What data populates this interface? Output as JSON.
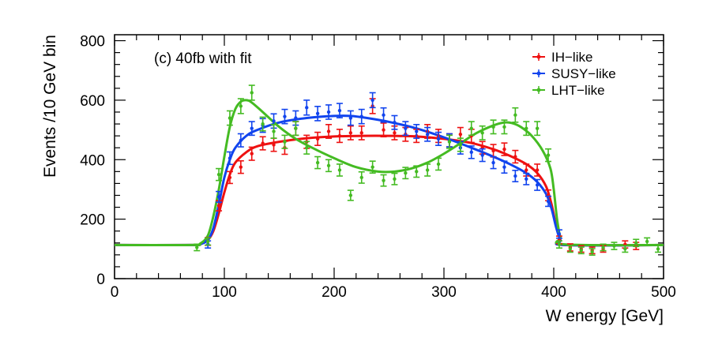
{
  "chart_data": {
    "type": "line",
    "title": "",
    "annotation": "(c) 40fb with fit",
    "xlabel": "W energy [GeV]",
    "ylabel": "Events /10 GeV bin",
    "xlim": [
      0,
      500
    ],
    "ylim": [
      0,
      820
    ],
    "x_ticks": [
      0,
      100,
      200,
      300,
      400,
      500
    ],
    "y_ticks": [
      0,
      200,
      400,
      600,
      800
    ],
    "legend_position": "top-right",
    "series": [
      {
        "name": "IH−like",
        "color": "#ee1111",
        "fit": [
          [
            0,
            113
          ],
          [
            70,
            113
          ],
          [
            78,
            116
          ],
          [
            85,
            130
          ],
          [
            90,
            160
          ],
          [
            95,
            220
          ],
          [
            100,
            290
          ],
          [
            105,
            350
          ],
          [
            110,
            390
          ],
          [
            120,
            425
          ],
          [
            130,
            445
          ],
          [
            150,
            460
          ],
          [
            175,
            472
          ],
          [
            200,
            478
          ],
          [
            225,
            480
          ],
          [
            250,
            480
          ],
          [
            275,
            478
          ],
          [
            300,
            470
          ],
          [
            325,
            456
          ],
          [
            345,
            435
          ],
          [
            360,
            413
          ],
          [
            375,
            385
          ],
          [
            385,
            355
          ],
          [
            393,
            310
          ],
          [
            398,
            250
          ],
          [
            402,
            180
          ],
          [
            406,
            130
          ],
          [
            410,
            113
          ],
          [
            500,
            113
          ]
        ],
        "points": [
          {
            "x": 85,
            "y": 125,
            "err": 13
          },
          {
            "x": 95,
            "y": 245,
            "err": 17
          },
          {
            "x": 105,
            "y": 340,
            "err": 20
          },
          {
            "x": 115,
            "y": 375,
            "err": 21
          },
          {
            "x": 125,
            "y": 420,
            "err": 22
          },
          {
            "x": 135,
            "y": 455,
            "err": 22
          },
          {
            "x": 145,
            "y": 450,
            "err": 22
          },
          {
            "x": 155,
            "y": 440,
            "err": 22
          },
          {
            "x": 165,
            "y": 505,
            "err": 23
          },
          {
            "x": 175,
            "y": 460,
            "err": 22
          },
          {
            "x": 185,
            "y": 470,
            "err": 22
          },
          {
            "x": 195,
            "y": 495,
            "err": 23
          },
          {
            "x": 205,
            "y": 480,
            "err": 22
          },
          {
            "x": 215,
            "y": 490,
            "err": 23
          },
          {
            "x": 225,
            "y": 490,
            "err": 23
          },
          {
            "x": 235,
            "y": 580,
            "err": 25
          },
          {
            "x": 245,
            "y": 500,
            "err": 23
          },
          {
            "x": 255,
            "y": 490,
            "err": 23
          },
          {
            "x": 265,
            "y": 485,
            "err": 23
          },
          {
            "x": 275,
            "y": 480,
            "err": 22
          },
          {
            "x": 285,
            "y": 495,
            "err": 23
          },
          {
            "x": 295,
            "y": 480,
            "err": 22
          },
          {
            "x": 305,
            "y": 465,
            "err": 22
          },
          {
            "x": 315,
            "y": 485,
            "err": 23
          },
          {
            "x": 325,
            "y": 480,
            "err": 22
          },
          {
            "x": 335,
            "y": 440,
            "err": 21
          },
          {
            "x": 345,
            "y": 430,
            "err": 21
          },
          {
            "x": 355,
            "y": 435,
            "err": 21
          },
          {
            "x": 365,
            "y": 410,
            "err": 21
          },
          {
            "x": 375,
            "y": 365,
            "err": 20
          },
          {
            "x": 385,
            "y": 365,
            "err": 20
          },
          {
            "x": 395,
            "y": 280,
            "err": 18
          },
          {
            "x": 405,
            "y": 130,
            "err": 13
          },
          {
            "x": 415,
            "y": 105,
            "err": 12
          },
          {
            "x": 425,
            "y": 100,
            "err": 11
          },
          {
            "x": 435,
            "y": 95,
            "err": 11
          },
          {
            "x": 445,
            "y": 100,
            "err": 11
          },
          {
            "x": 465,
            "y": 115,
            "err": 12
          },
          {
            "x": 475,
            "y": 110,
            "err": 12
          }
        ]
      },
      {
        "name": "SUSY−like",
        "color": "#1144ee",
        "fit": [
          [
            0,
            113
          ],
          [
            70,
            113
          ],
          [
            78,
            116
          ],
          [
            85,
            130
          ],
          [
            90,
            170
          ],
          [
            95,
            250
          ],
          [
            100,
            340
          ],
          [
            105,
            400
          ],
          [
            110,
            440
          ],
          [
            120,
            480
          ],
          [
            130,
            500
          ],
          [
            150,
            525
          ],
          [
            175,
            540
          ],
          [
            200,
            547
          ],
          [
            215,
            547
          ],
          [
            230,
            540
          ],
          [
            250,
            527
          ],
          [
            275,
            505
          ],
          [
            300,
            475
          ],
          [
            325,
            440
          ],
          [
            345,
            410
          ],
          [
            360,
            385
          ],
          [
            375,
            355
          ],
          [
            385,
            325
          ],
          [
            393,
            285
          ],
          [
            398,
            235
          ],
          [
            402,
            175
          ],
          [
            406,
            130
          ],
          [
            410,
            113
          ],
          [
            500,
            113
          ]
        ],
        "points": [
          {
            "x": 85,
            "y": 115,
            "err": 12
          },
          {
            "x": 95,
            "y": 275,
            "err": 18
          },
          {
            "x": 105,
            "y": 405,
            "err": 21
          },
          {
            "x": 115,
            "y": 465,
            "err": 22
          },
          {
            "x": 125,
            "y": 505,
            "err": 23
          },
          {
            "x": 135,
            "y": 515,
            "err": 23
          },
          {
            "x": 145,
            "y": 530,
            "err": 24
          },
          {
            "x": 155,
            "y": 545,
            "err": 24
          },
          {
            "x": 165,
            "y": 540,
            "err": 24
          },
          {
            "x": 175,
            "y": 575,
            "err": 25
          },
          {
            "x": 185,
            "y": 555,
            "err": 24
          },
          {
            "x": 195,
            "y": 560,
            "err": 24
          },
          {
            "x": 205,
            "y": 565,
            "err": 24
          },
          {
            "x": 215,
            "y": 540,
            "err": 24
          },
          {
            "x": 225,
            "y": 545,
            "err": 24
          },
          {
            "x": 235,
            "y": 600,
            "err": 25
          },
          {
            "x": 245,
            "y": 550,
            "err": 24
          },
          {
            "x": 255,
            "y": 525,
            "err": 23
          },
          {
            "x": 265,
            "y": 505,
            "err": 23
          },
          {
            "x": 275,
            "y": 495,
            "err": 23
          },
          {
            "x": 285,
            "y": 485,
            "err": 23
          },
          {
            "x": 295,
            "y": 470,
            "err": 22
          },
          {
            "x": 305,
            "y": 465,
            "err": 22
          },
          {
            "x": 315,
            "y": 440,
            "err": 21
          },
          {
            "x": 325,
            "y": 425,
            "err": 21
          },
          {
            "x": 335,
            "y": 415,
            "err": 21
          },
          {
            "x": 345,
            "y": 390,
            "err": 20
          },
          {
            "x": 355,
            "y": 375,
            "err": 20
          },
          {
            "x": 365,
            "y": 345,
            "err": 19
          },
          {
            "x": 375,
            "y": 335,
            "err": 19
          },
          {
            "x": 385,
            "y": 315,
            "err": 18
          },
          {
            "x": 395,
            "y": 260,
            "err": 17
          },
          {
            "x": 405,
            "y": 150,
            "err": 14
          }
        ]
      },
      {
        "name": "LHT−like",
        "color": "#44bb22",
        "fit": [
          [
            0,
            113
          ],
          [
            70,
            113
          ],
          [
            78,
            118
          ],
          [
            85,
            145
          ],
          [
            90,
            210
          ],
          [
            95,
            300
          ],
          [
            100,
            410
          ],
          [
            105,
            510
          ],
          [
            110,
            570
          ],
          [
            115,
            595
          ],
          [
            120,
            600
          ],
          [
            125,
            592
          ],
          [
            135,
            560
          ],
          [
            150,
            510
          ],
          [
            165,
            470
          ],
          [
            180,
            440
          ],
          [
            200,
            405
          ],
          [
            220,
            375
          ],
          [
            240,
            360
          ],
          [
            255,
            360
          ],
          [
            270,
            370
          ],
          [
            285,
            390
          ],
          [
            300,
            420
          ],
          [
            315,
            455
          ],
          [
            330,
            490
          ],
          [
            345,
            515
          ],
          [
            355,
            525
          ],
          [
            362,
            523
          ],
          [
            370,
            510
          ],
          [
            380,
            480
          ],
          [
            390,
            430
          ],
          [
            397,
            370
          ],
          [
            400,
            300
          ],
          [
            403,
            200
          ],
          [
            406,
            140
          ],
          [
            410,
            115
          ],
          [
            500,
            113
          ]
        ],
        "points": [
          {
            "x": 75,
            "y": 105,
            "err": 11
          },
          {
            "x": 85,
            "y": 125,
            "err": 12
          },
          {
            "x": 95,
            "y": 350,
            "err": 20
          },
          {
            "x": 105,
            "y": 540,
            "err": 24
          },
          {
            "x": 115,
            "y": 580,
            "err": 25
          },
          {
            "x": 125,
            "y": 625,
            "err": 25
          },
          {
            "x": 135,
            "y": 520,
            "err": 23
          },
          {
            "x": 145,
            "y": 495,
            "err": 23
          },
          {
            "x": 155,
            "y": 460,
            "err": 22
          },
          {
            "x": 165,
            "y": 505,
            "err": 23
          },
          {
            "x": 175,
            "y": 440,
            "err": 21
          },
          {
            "x": 185,
            "y": 390,
            "err": 20
          },
          {
            "x": 195,
            "y": 380,
            "err": 20
          },
          {
            "x": 205,
            "y": 365,
            "err": 20
          },
          {
            "x": 215,
            "y": 280,
            "err": 17
          },
          {
            "x": 225,
            "y": 340,
            "err": 19
          },
          {
            "x": 235,
            "y": 375,
            "err": 20
          },
          {
            "x": 245,
            "y": 330,
            "err": 19
          },
          {
            "x": 255,
            "y": 335,
            "err": 19
          },
          {
            "x": 265,
            "y": 355,
            "err": 19
          },
          {
            "x": 275,
            "y": 360,
            "err": 19
          },
          {
            "x": 285,
            "y": 365,
            "err": 20
          },
          {
            "x": 295,
            "y": 385,
            "err": 20
          },
          {
            "x": 305,
            "y": 460,
            "err": 22
          },
          {
            "x": 315,
            "y": 450,
            "err": 22
          },
          {
            "x": 325,
            "y": 505,
            "err": 23
          },
          {
            "x": 335,
            "y": 490,
            "err": 23
          },
          {
            "x": 345,
            "y": 510,
            "err": 23
          },
          {
            "x": 355,
            "y": 510,
            "err": 23
          },
          {
            "x": 365,
            "y": 550,
            "err": 24
          },
          {
            "x": 375,
            "y": 505,
            "err": 23
          },
          {
            "x": 385,
            "y": 505,
            "err": 23
          },
          {
            "x": 395,
            "y": 415,
            "err": 21
          },
          {
            "x": 405,
            "y": 115,
            "err": 12
          },
          {
            "x": 415,
            "y": 100,
            "err": 11
          },
          {
            "x": 425,
            "y": 95,
            "err": 11
          },
          {
            "x": 435,
            "y": 90,
            "err": 11
          },
          {
            "x": 445,
            "y": 105,
            "err": 11
          },
          {
            "x": 455,
            "y": 110,
            "err": 12
          },
          {
            "x": 465,
            "y": 100,
            "err": 11
          },
          {
            "x": 475,
            "y": 120,
            "err": 12
          },
          {
            "x": 485,
            "y": 125,
            "err": 12
          },
          {
            "x": 495,
            "y": 100,
            "err": 11
          }
        ]
      }
    ]
  }
}
